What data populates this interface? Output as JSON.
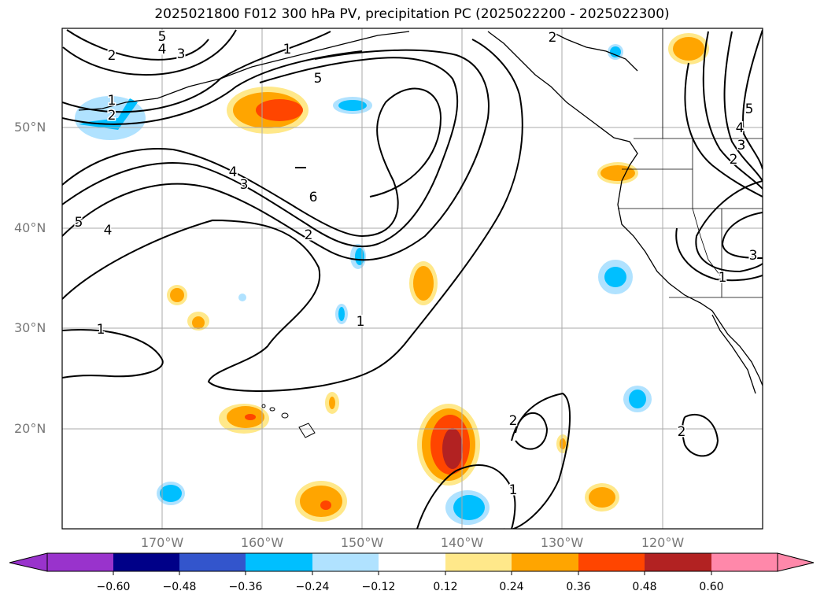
{
  "title": "2025021800 F012 300 hPa PV, precipitation PC (2025022200 - 2025022300)",
  "latitude_labels": [
    "50°N",
    "40°N",
    "30°N",
    "20°N"
  ],
  "longitude_labels": [
    "170°W",
    "160°W",
    "150°W",
    "140°W",
    "130°W",
    "120°W"
  ],
  "contour_labels": [
    "5",
    "4",
    "3",
    "2",
    "2",
    "1",
    "2",
    "5",
    "4",
    "3",
    "6",
    "2",
    "1",
    "1",
    "5",
    "4",
    "1",
    "2",
    "1",
    "2",
    "1",
    "5",
    "4",
    "3",
    "2",
    "3",
    "1",
    "1"
  ],
  "colorbar": {
    "ticks": [
      "−0.60",
      "−0.48",
      "−0.36",
      "−0.24",
      "−0.12",
      "0.12",
      "0.24",
      "0.36",
      "0.48",
      "0.60"
    ],
    "colors": [
      "#9933cc",
      "#000088",
      "#3355cc",
      "#00bfff",
      "#b0e2ff",
      "#ffffff",
      "#ffe88a",
      "#ffa500",
      "#ff4500",
      "#b22222",
      "#ff88aa"
    ]
  }
}
